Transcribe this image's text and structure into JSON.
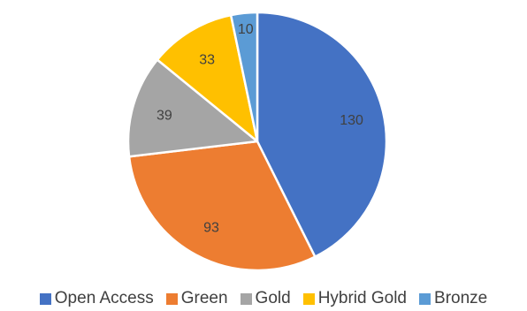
{
  "chart_data": {
    "type": "pie",
    "title": "",
    "categories": [
      "Open Access",
      "Green",
      "Gold",
      "Hybrid Gold",
      "Bronze"
    ],
    "values": [
      130,
      93,
      39,
      33,
      10
    ],
    "colors": [
      "#4472C4",
      "#ED7D31",
      "#A5A5A5",
      "#FFC000",
      "#5B9BD5"
    ],
    "start_angle_deg": 0,
    "direction": "clockwise",
    "data_labels": true,
    "legend_position": "bottom"
  }
}
